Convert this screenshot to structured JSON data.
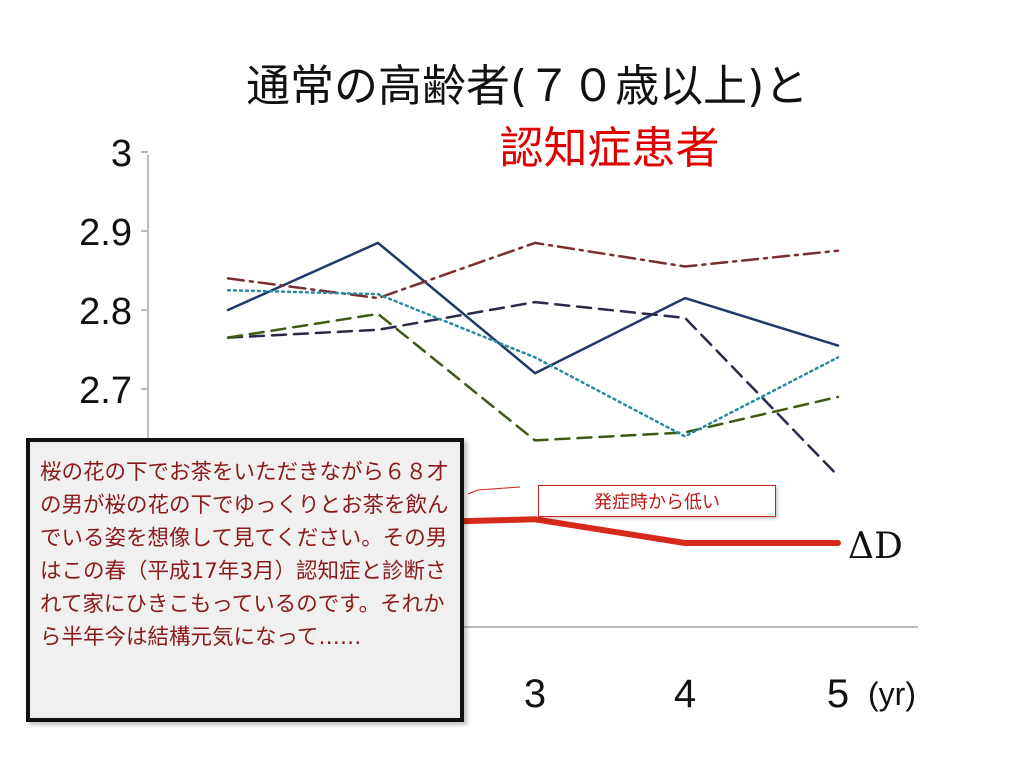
{
  "title": {
    "line1": "通常の高齢者(７０歳以上)と",
    "line2": "認知症患者"
  },
  "note_box": {
    "text": "桜の花の下でお茶をいただきながら６８才の男が桜の花の下でゆっくりとお茶を飲んでいる姿を想像して見てください。その男はこの春（平成17年3月）認知症と診断されて家にひきこもっているのです。それから半年今は結構元気になって……"
  },
  "callout": {
    "text": "発症時から低い"
  },
  "chart_data": {
    "type": "line",
    "x": [
      1,
      2,
      3,
      4,
      5
    ],
    "x_tick_labels": [
      "3",
      "4",
      "5"
    ],
    "x_unit_label": "(yr)",
    "y_tick_labels": [
      "2.7",
      "2.8",
      "2.9",
      "3"
    ],
    "ylim": [
      2.5,
      3.0
    ],
    "series": [
      {
        "values": [
          2.8,
          2.885,
          2.72,
          2.815,
          2.755
        ],
        "color": "#1f3a68",
        "style": "solid"
      },
      {
        "values": [
          2.84,
          2.815,
          2.885,
          2.855,
          2.875
        ],
        "color": "#7a2f2f",
        "style": "dashdot"
      },
      {
        "values": [
          2.765,
          2.775,
          2.81,
          2.79,
          2.59
        ],
        "color": "#2a2a4a",
        "style": "dashed"
      },
      {
        "values": [
          2.765,
          2.795,
          2.635,
          2.645,
          2.69
        ],
        "color": "#3c5a16",
        "style": "dashed"
      },
      {
        "values": [
          2.825,
          2.82,
          2.74,
          2.64,
          2.74
        ],
        "color": "#2a8aa0",
        "style": "dotted"
      },
      {
        "name": "ΔD",
        "values": [
          2.49,
          2.53,
          2.535,
          2.505,
          2.505
        ],
        "color": "#d62a1a",
        "style": "thick"
      }
    ],
    "grid": false
  }
}
